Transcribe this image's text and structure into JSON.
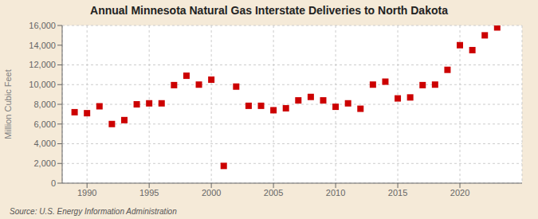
{
  "chart_data": {
    "type": "scatter",
    "title": "Annual Minnesota Natural Gas Interstate Deliveries to North Dakota",
    "ylabel": "Million Cubic Feet",
    "annotations": [
      "Source: U.S. Energy Information Administration"
    ],
    "x": [
      1989,
      1990,
      1991,
      1992,
      1993,
      1994,
      1995,
      1996,
      1997,
      1998,
      1999,
      2000,
      2001,
      2002,
      2003,
      2004,
      2005,
      2006,
      2007,
      2008,
      2009,
      2010,
      2011,
      2012,
      2013,
      2014,
      2015,
      2016,
      2017,
      2018,
      2019,
      2020,
      2021,
      2022,
      2023
    ],
    "values": [
      7200,
      7100,
      7800,
      6000,
      6400,
      8000,
      8100,
      8100,
      9950,
      10900,
      10000,
      10500,
      1750,
      9800,
      7850,
      7850,
      7400,
      7600,
      8400,
      8750,
      8400,
      7750,
      8100,
      7550,
      10000,
      10300,
      8600,
      8700,
      9950,
      10000,
      11500,
      14000,
      13500,
      15000,
      15800
    ],
    "color": "#cc0000",
    "marker": "square",
    "xlim": [
      1988,
      2025
    ],
    "ylim": [
      0,
      16000
    ],
    "xticks": [
      1990,
      1995,
      2000,
      2005,
      2010,
      2015,
      2020
    ],
    "yticks": [
      0,
      {
        "value": 2000,
        "label": "2,000"
      },
      {
        "value": 4000,
        "label": "4,000"
      },
      {
        "value": 6000,
        "label": "6,000"
      },
      {
        "value": 8000,
        "label": "8,000"
      },
      {
        "value": 10000,
        "label": "10,000"
      },
      {
        "value": 12000,
        "label": "12,000"
      },
      {
        "value": 14000,
        "label": "14,000"
      },
      {
        "value": 16000,
        "label": "16,000"
      }
    ],
    "grid": true
  }
}
